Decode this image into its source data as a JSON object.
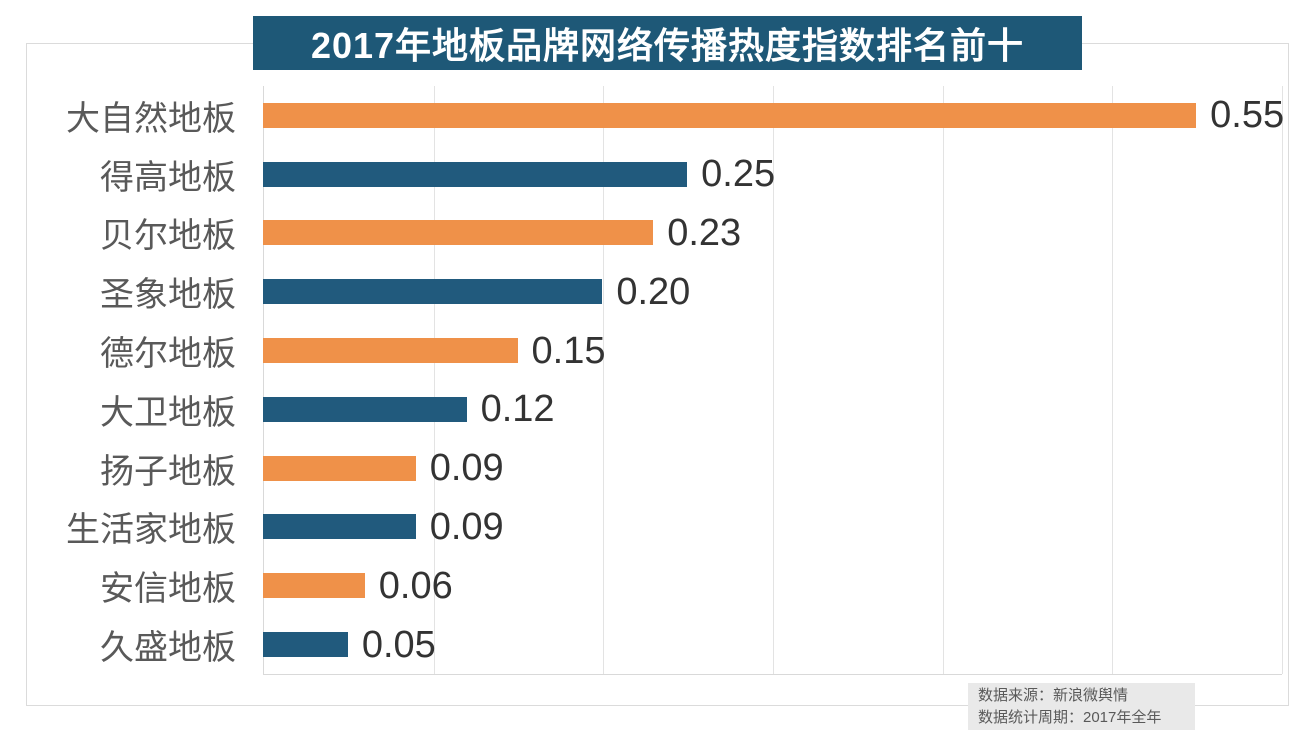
{
  "title": "2017年地板品牌网络传播热度指数排名前十",
  "chart_data": {
    "type": "bar",
    "orientation": "horizontal",
    "title": "2017年地板品牌网络传播热度指数排名前十",
    "categories": [
      "大自然地板",
      "得高地板",
      "贝尔地板",
      "圣象地板",
      "德尔地板",
      "大卫地板",
      "扬子地板",
      "生活家地板",
      "安信地板",
      "久盛地板"
    ],
    "values": [
      0.55,
      0.25,
      0.23,
      0.2,
      0.15,
      0.12,
      0.09,
      0.09,
      0.06,
      0.05
    ],
    "value_labels": [
      "0.55",
      "0.25",
      "0.23",
      "0.20",
      "0.15",
      "0.12",
      "0.09",
      "0.09",
      "0.06",
      "0.05"
    ],
    "xlabel": "",
    "ylabel": "",
    "xlim": [
      0,
      0.6
    ],
    "grid": true,
    "grid_ticks": [
      0.1,
      0.2,
      0.3,
      0.4,
      0.5,
      0.6
    ],
    "legend": false,
    "bar_color_pattern": "alternating"
  },
  "colors": {
    "bar_orange": "#EF9149",
    "bar_blue": "#215A7D",
    "title_banner_bg": "#1E5877",
    "title_text": "#FFFFFF",
    "category_label": "#595959",
    "value_label": "#333333",
    "gridline": "#E3E3E3",
    "axis_line": "#D9D9D9",
    "footer_bg": "#E9E9E9",
    "footer_text": "#595959"
  },
  "footer": {
    "source": "数据来源：新浪微舆情",
    "period": "数据统计周期：2017年全年"
  }
}
